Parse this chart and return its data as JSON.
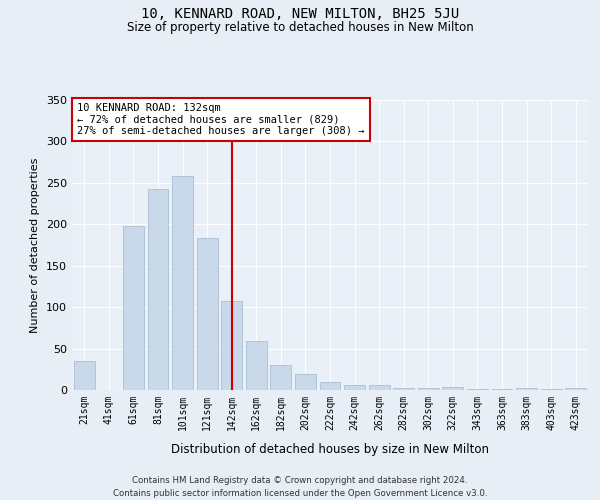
{
  "title": "10, KENNARD ROAD, NEW MILTON, BH25 5JU",
  "subtitle": "Size of property relative to detached houses in New Milton",
  "xlabel": "Distribution of detached houses by size in New Milton",
  "ylabel": "Number of detached properties",
  "footer_line1": "Contains HM Land Registry data © Crown copyright and database right 2024.",
  "footer_line2": "Contains public sector information licensed under the Open Government Licence v3.0.",
  "categories": [
    "21sqm",
    "41sqm",
    "61sqm",
    "81sqm",
    "101sqm",
    "121sqm",
    "142sqm",
    "162sqm",
    "182sqm",
    "202sqm",
    "222sqm",
    "242sqm",
    "262sqm",
    "282sqm",
    "302sqm",
    "322sqm",
    "343sqm",
    "363sqm",
    "383sqm",
    "403sqm",
    "423sqm"
  ],
  "values": [
    35,
    0,
    198,
    242,
    258,
    183,
    108,
    59,
    30,
    19,
    10,
    6,
    6,
    3,
    3,
    4,
    1,
    1,
    2,
    1,
    2
  ],
  "bar_color": "#c9d9ea",
  "bar_edge_color": "#a0b8d0",
  "vline_x": 6.0,
  "vline_color": "#cc0000",
  "annotation_text": "10 KENNARD ROAD: 132sqm\n← 72% of detached houses are smaller (829)\n27% of semi-detached houses are larger (308) →",
  "annotation_box_color": "#ffffff",
  "annotation_box_edge_color": "#cc0000",
  "ylim": [
    0,
    350
  ],
  "yticks": [
    0,
    50,
    100,
    150,
    200,
    250,
    300,
    350
  ],
  "bg_color": "#e8eef5",
  "plot_bg_color": "#eaf0f7",
  "grid_color": "#ffffff"
}
